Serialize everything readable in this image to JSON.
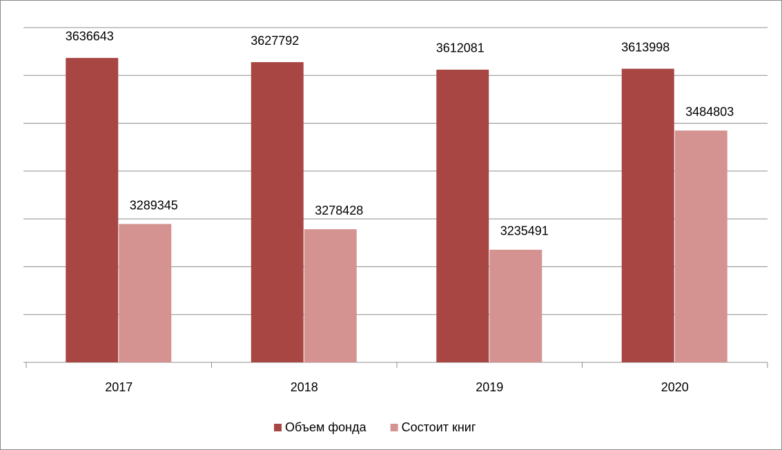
{
  "chart_data": {
    "type": "bar",
    "categories": [
      "2017",
      "2018",
      "2019",
      "2020"
    ],
    "series": [
      {
        "name": "Объем фонда",
        "color": "#a84644",
        "values": [
          3636643,
          3627792,
          3612081,
          3613998
        ]
      },
      {
        "name": "Состоит книг",
        "color": "#d49391",
        "values": [
          3289345,
          3278428,
          3235491,
          3484803
        ]
      }
    ],
    "ylim": [
      3000000,
      3700000
    ],
    "yticks": [
      3000000,
      3100000,
      3200000,
      3300000,
      3400000,
      3500000,
      3600000,
      3700000
    ],
    "grid": true,
    "legend": "bottom"
  }
}
